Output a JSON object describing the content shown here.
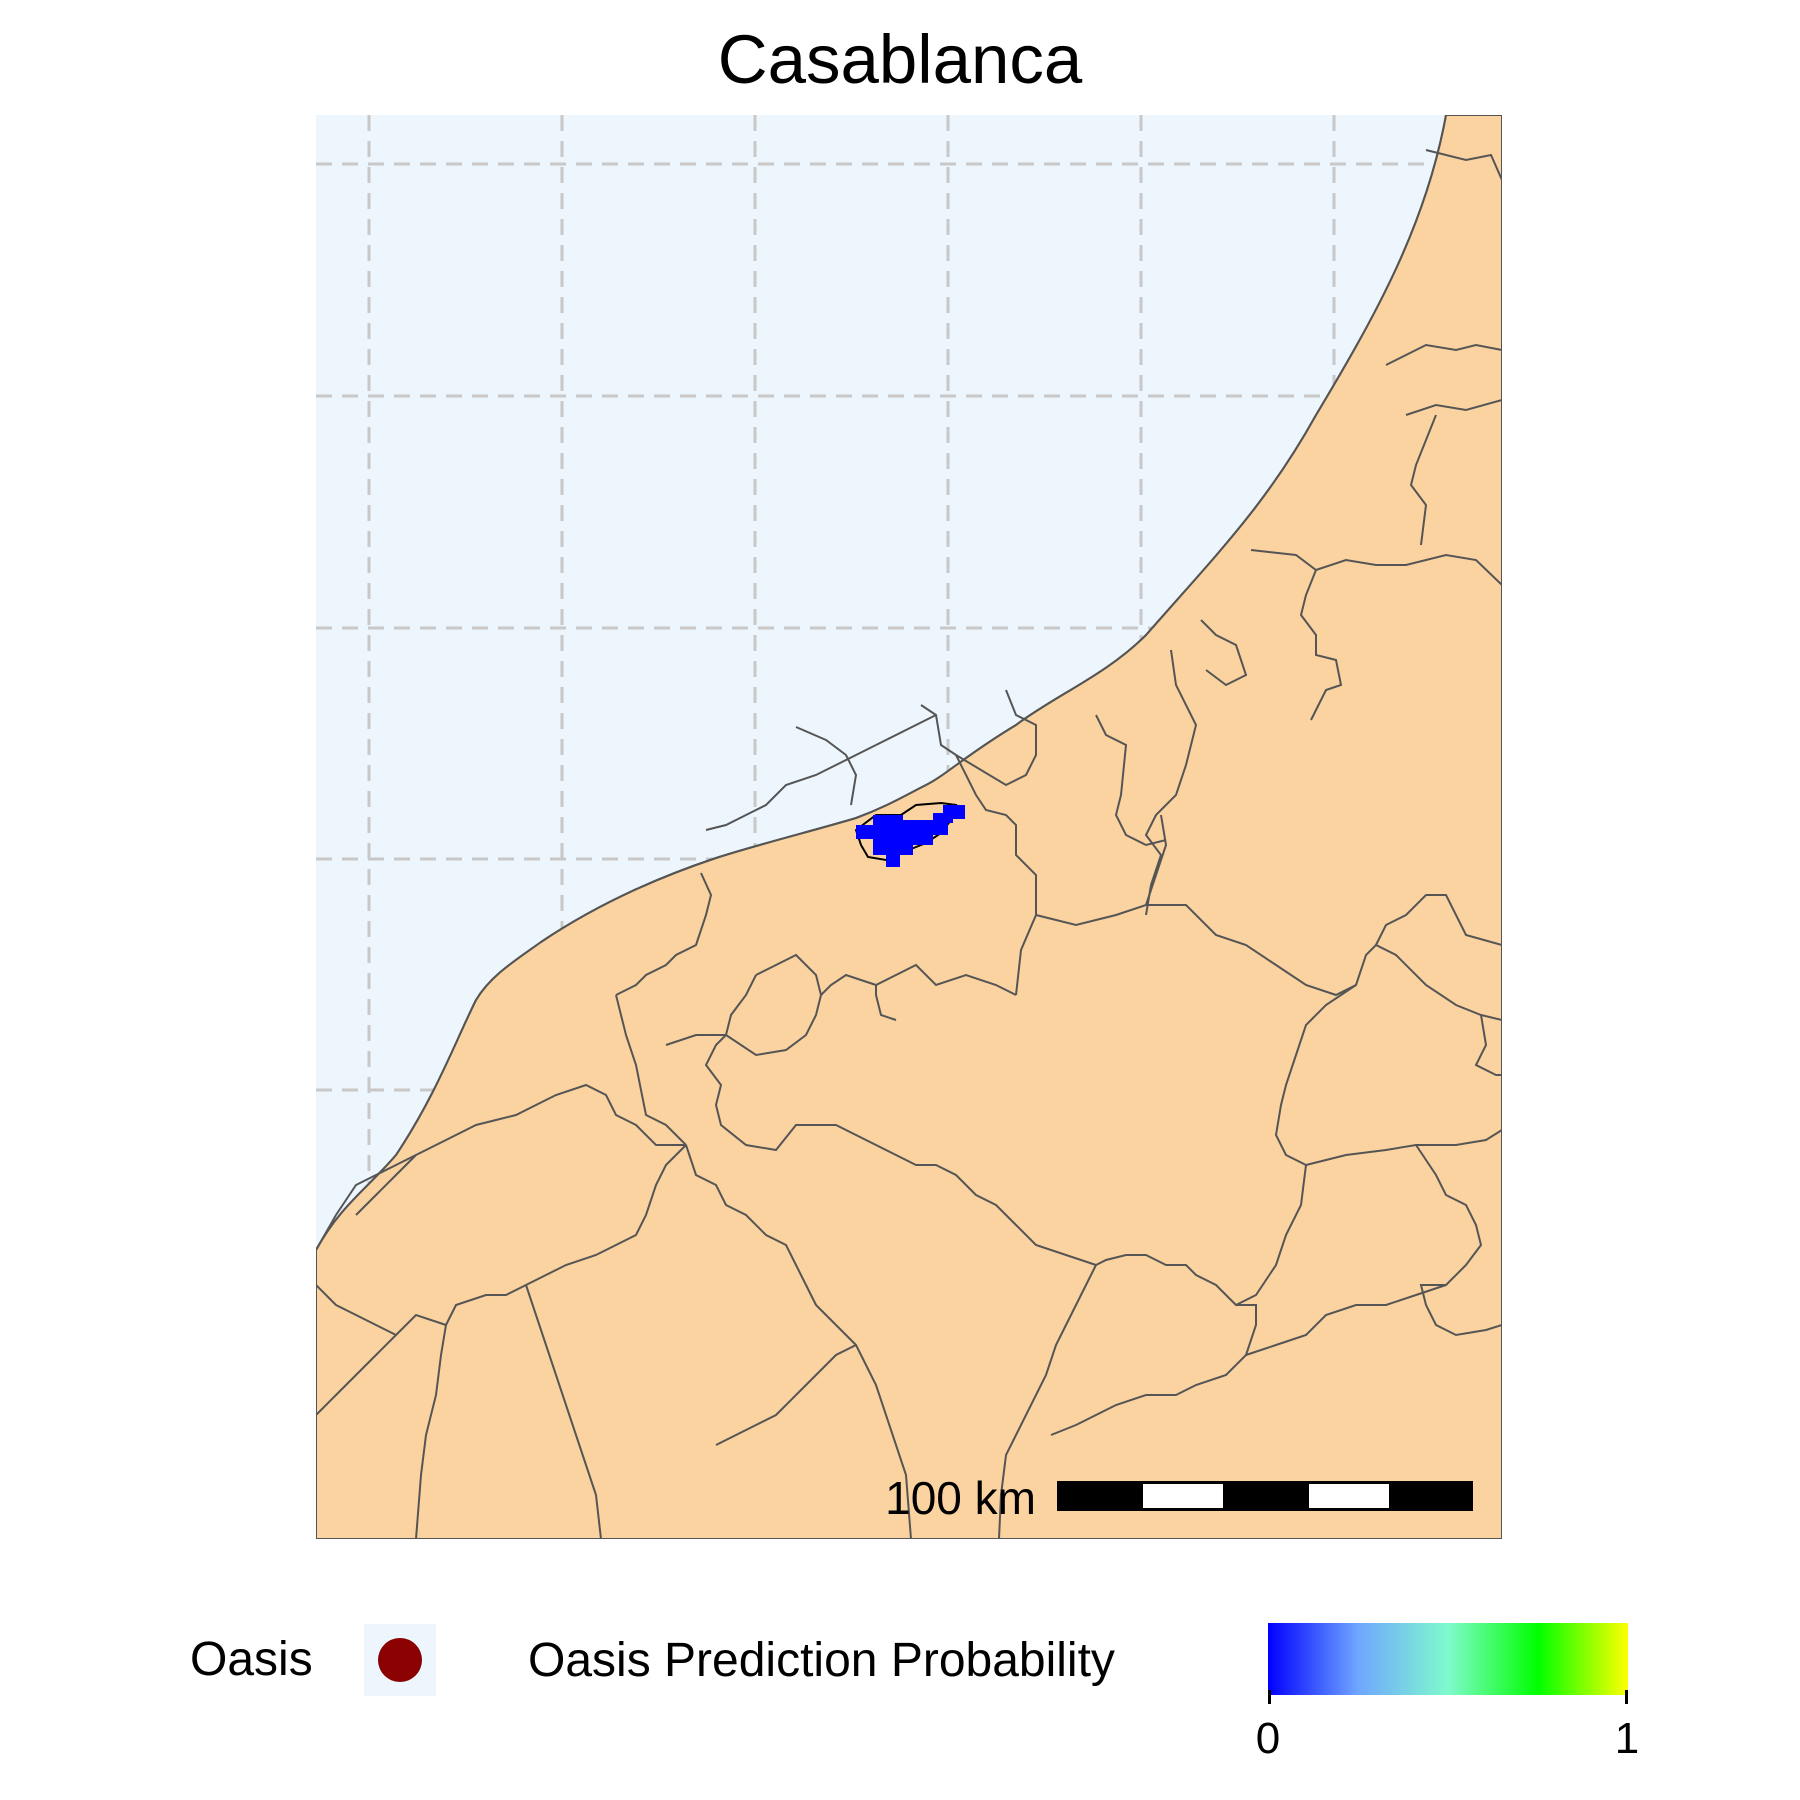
{
  "title": "Casablanca",
  "map": {
    "ocean_color": "#eef6fd",
    "land_color": "#fbd3a0",
    "border_color": "#555555",
    "graticule_color": "#c8c8c8",
    "prediction_color": "#0000ff"
  },
  "scale_bar": {
    "label": "100 km"
  },
  "legend": {
    "oasis_label": "Oasis",
    "oasis_color": "#8b0000",
    "probability_label": "Oasis Prediction Probability",
    "min_label": "0",
    "max_label": "1",
    "gradient": [
      "#0000ff",
      "#6fa6ff",
      "#7ffacc",
      "#00ff00",
      "#ffff00"
    ]
  }
}
